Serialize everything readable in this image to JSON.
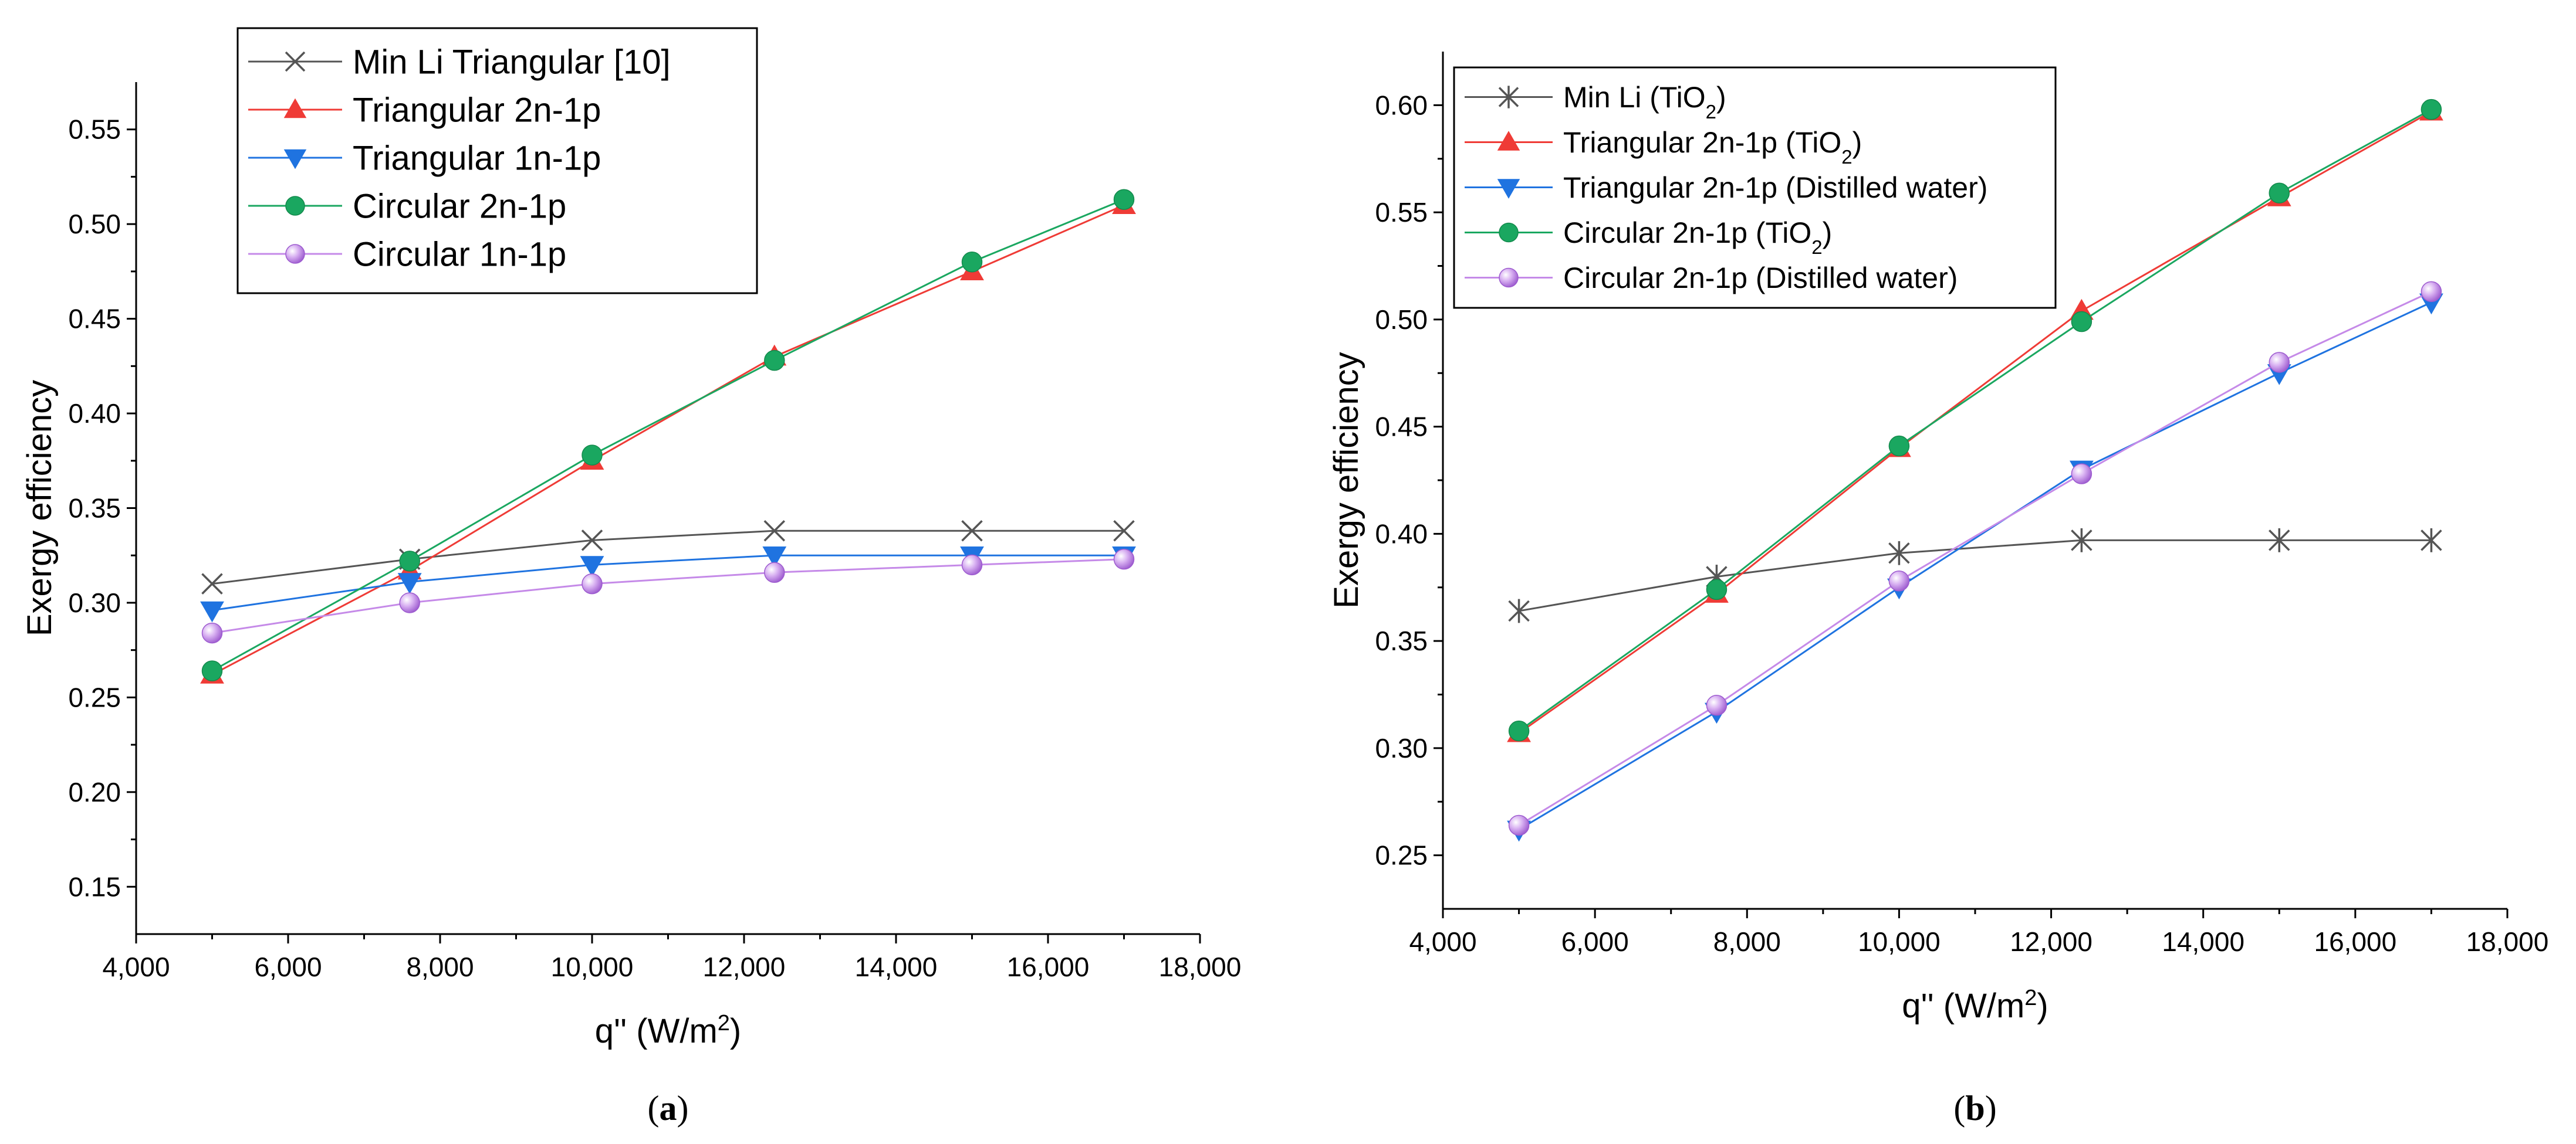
{
  "chart_data": [
    {
      "type": "line",
      "panel_label_prefix": "(",
      "panel_label_letter": "a",
      "panel_label_suffix": ")",
      "xlabel": "q'' (W/m",
      "xlabel_sup": "2",
      "xlabel_close": ")",
      "ylabel": "Exergy efficiency",
      "xlim": [
        4000,
        18000
      ],
      "ylim": [
        0.125,
        0.575
      ],
      "xticks": [
        4000,
        6000,
        8000,
        10000,
        12000,
        14000,
        16000,
        18000
      ],
      "xtick_labels": [
        "4,000",
        "6,000",
        "8,000",
        "10,000",
        "12,000",
        "14,000",
        "16,000",
        "18,000"
      ],
      "yticks": [
        0.15,
        0.2,
        0.25,
        0.3,
        0.35,
        0.4,
        0.45,
        0.5,
        0.55
      ],
      "ytick_labels": [
        "0.15",
        "0.20",
        "0.25",
        "0.30",
        "0.35",
        "0.40",
        "0.45",
        "0.50",
        "0.55"
      ],
      "legend_position": "top-center",
      "x": [
        5000,
        7600,
        10000,
        12400,
        15000,
        17000
      ],
      "series": [
        {
          "name": "Min Li Triangular [10]",
          "color": "#555555",
          "marker": "x",
          "values": [
            0.31,
            0.323,
            0.333,
            0.338,
            0.338,
            0.338
          ]
        },
        {
          "name": "Triangular 2n-1p",
          "color": "#ef3b36",
          "marker": "triangle-up",
          "values": [
            0.262,
            0.317,
            0.375,
            0.43,
            0.475,
            0.51
          ]
        },
        {
          "name": "Triangular 1n-1p",
          "color": "#1f73e0",
          "marker": "triangle-down",
          "values": [
            0.296,
            0.311,
            0.32,
            0.325,
            0.325,
            0.325
          ]
        },
        {
          "name": "Circular 2n-1p",
          "color": "#1aa760",
          "marker": "circle",
          "values": [
            0.264,
            0.322,
            0.378,
            0.428,
            0.48,
            0.513
          ]
        },
        {
          "name": "Circular 1n-1p",
          "color": "#c58ae8",
          "marker": "sphere",
          "values": [
            0.284,
            0.3,
            0.31,
            0.316,
            0.32,
            0.323
          ]
        }
      ]
    },
    {
      "type": "line",
      "panel_label_prefix": "(",
      "panel_label_letter": "b",
      "panel_label_suffix": ")",
      "xlabel": "q'' (W/m",
      "xlabel_sup": "2",
      "xlabel_close": ")",
      "ylabel": "Exergy efficiency",
      "xlim": [
        4000,
        18000
      ],
      "ylim": [
        0.225,
        0.625
      ],
      "xticks": [
        4000,
        6000,
        8000,
        10000,
        12000,
        14000,
        16000,
        18000
      ],
      "xtick_labels": [
        "4,000",
        "6,000",
        "8,000",
        "10,000",
        "12,000",
        "14,000",
        "16,000",
        "18,000"
      ],
      "yticks": [
        0.25,
        0.3,
        0.35,
        0.4,
        0.45,
        0.5,
        0.55,
        0.6
      ],
      "ytick_labels": [
        "0.25",
        "0.30",
        "0.35",
        "0.40",
        "0.45",
        "0.50",
        "0.55",
        "0.60"
      ],
      "legend_position": "top-left",
      "x": [
        5000,
        7600,
        10000,
        12400,
        15000,
        17000
      ],
      "series": [
        {
          "name": "Min Li (TiO",
          "name_sub": "2",
          "name_tail": ")",
          "color": "#555555",
          "marker": "asterisk",
          "values": [
            0.364,
            0.38,
            0.391,
            0.397,
            0.397,
            0.397
          ]
        },
        {
          "name": "Triangular 2n-1p (TiO",
          "name_sub": "2",
          "name_tail": ")",
          "color": "#ef3b36",
          "marker": "triangle-up",
          "values": [
            0.307,
            0.372,
            0.44,
            0.504,
            0.557,
            0.597
          ]
        },
        {
          "name": "Triangular 2n-1p (Distilled water)",
          "color": "#1f73e0",
          "marker": "triangle-down",
          "values": [
            0.262,
            0.317,
            0.375,
            0.43,
            0.475,
            0.508
          ]
        },
        {
          "name": "Circular 2n-1p (TiO",
          "name_sub": "2",
          "name_tail": ")",
          "color": "#1aa760",
          "marker": "circle",
          "values": [
            0.308,
            0.374,
            0.441,
            0.499,
            0.559,
            0.598
          ]
        },
        {
          "name": "Circular 2n-1p (Distilled water)",
          "color": "#c58ae8",
          "marker": "sphere",
          "values": [
            0.264,
            0.32,
            0.378,
            0.428,
            0.48,
            0.513
          ]
        }
      ]
    }
  ]
}
